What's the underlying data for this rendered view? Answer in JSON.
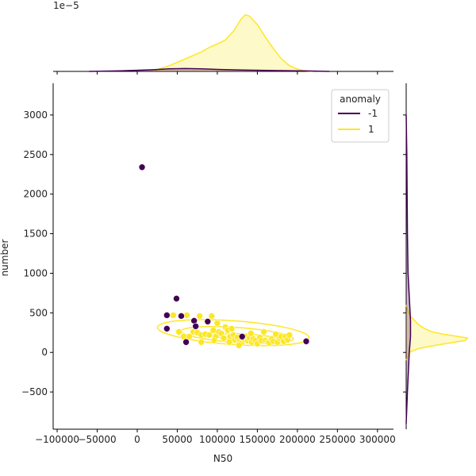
{
  "chart_data": {
    "type": "scatter",
    "xlabel": "N50",
    "ylabel": "number",
    "top_offset_label": "1e−5",
    "xlim": [
      -105000,
      320000
    ],
    "ylim": [
      -970,
      3400
    ],
    "x_ticks": [
      {
        "value": -100000,
        "label": "−100000"
      },
      {
        "value": -50000,
        "label": "−50000"
      },
      {
        "value": 0,
        "label": "0"
      },
      {
        "value": 50000,
        "label": "50000"
      },
      {
        "value": 100000,
        "label": "100000"
      },
      {
        "value": 150000,
        "label": "150000"
      },
      {
        "value": 200000,
        "label": "200000"
      },
      {
        "value": 250000,
        "label": "250000"
      },
      {
        "value": 300000,
        "label": "300000"
      }
    ],
    "y_ticks": [
      {
        "value": 3000,
        "label": "3000"
      },
      {
        "value": 2500,
        "label": "2500"
      },
      {
        "value": 2000,
        "label": "2000"
      },
      {
        "value": 1500,
        "label": "1500"
      },
      {
        "value": 1000,
        "label": "1000"
      },
      {
        "value": 500,
        "label": "500"
      },
      {
        "value": 0,
        "label": "0"
      },
      {
        "value": -500,
        "label": "−500"
      }
    ],
    "legend": {
      "title": "anomaly",
      "placement": "top-right",
      "entries": [
        {
          "label": "-1",
          "color": "#440154"
        },
        {
          "label": "1",
          "color": "#fde725"
        }
      ]
    },
    "series": [
      {
        "name": "-1",
        "color": "#440154",
        "points": [
          [
            6000,
            2340
          ],
          [
            49000,
            680
          ],
          [
            37000,
            470
          ],
          [
            55000,
            460
          ],
          [
            37000,
            300
          ],
          [
            71000,
            400
          ],
          [
            73000,
            330
          ],
          [
            88000,
            390
          ],
          [
            61000,
            130
          ],
          [
            131000,
            200
          ],
          [
            211000,
            140
          ]
        ]
      },
      {
        "name": "1",
        "color": "#fde725",
        "points": [
          [
            45000,
            470
          ],
          [
            62000,
            470
          ],
          [
            78000,
            460
          ],
          [
            93000,
            460
          ],
          [
            100000,
            370
          ],
          [
            52000,
            260
          ],
          [
            58000,
            200
          ],
          [
            65000,
            200
          ],
          [
            70000,
            260
          ],
          [
            75000,
            250
          ],
          [
            80000,
            220
          ],
          [
            85000,
            230
          ],
          [
            90000,
            220
          ],
          [
            95000,
            280
          ],
          [
            98000,
            200
          ],
          [
            102000,
            260
          ],
          [
            105000,
            240
          ],
          [
            108000,
            180
          ],
          [
            110000,
            320
          ],
          [
            113000,
            280
          ],
          [
            116000,
            200
          ],
          [
            118000,
            300
          ],
          [
            120000,
            220
          ],
          [
            122000,
            160
          ],
          [
            125000,
            190
          ],
          [
            128000,
            140
          ],
          [
            130000,
            120
          ],
          [
            133000,
            170
          ],
          [
            135000,
            200
          ],
          [
            138000,
            150
          ],
          [
            140000,
            180
          ],
          [
            143000,
            130
          ],
          [
            145000,
            170
          ],
          [
            148000,
            150
          ],
          [
            150000,
            110
          ],
          [
            153000,
            190
          ],
          [
            155000,
            150
          ],
          [
            158000,
            260
          ],
          [
            160000,
            150
          ],
          [
            163000,
            130
          ],
          [
            165000,
            120
          ],
          [
            168000,
            170
          ],
          [
            170000,
            140
          ],
          [
            173000,
            230
          ],
          [
            175000,
            130
          ],
          [
            178000,
            180
          ],
          [
            180000,
            200
          ],
          [
            183000,
            140
          ],
          [
            185000,
            200
          ],
          [
            188000,
            160
          ],
          [
            190000,
            220
          ],
          [
            80000,
            130
          ],
          [
            115000,
            130
          ],
          [
            127000,
            90
          ],
          [
            142000,
            240
          ],
          [
            96000,
            150
          ]
        ]
      }
    ],
    "marginal_x": {
      "series": [
        {
          "name": "1",
          "x": [
            20000,
            40000,
            60000,
            80000,
            90000,
            100000,
            110000,
            120000,
            130000,
            135000,
            140000,
            150000,
            160000,
            170000,
            180000,
            190000,
            200000,
            210000,
            220000
          ],
          "density": [
            0.01,
            0.1,
            0.22,
            0.34,
            0.42,
            0.48,
            0.55,
            0.7,
            0.92,
            0.99,
            0.97,
            0.82,
            0.6,
            0.4,
            0.22,
            0.1,
            0.04,
            0.01,
            0.0
          ]
        },
        {
          "name": "-1",
          "x": [
            -60000,
            -20000,
            20000,
            40000,
            60000,
            80000,
            100000,
            130000,
            170000,
            210000,
            240000
          ],
          "density": [
            0.0,
            0.01,
            0.03,
            0.045,
            0.05,
            0.045,
            0.035,
            0.025,
            0.015,
            0.008,
            0.0
          ]
        }
      ]
    },
    "marginal_y": {
      "series": [
        {
          "name": "1",
          "y": [
            -100,
            0,
            50,
            100,
            150,
            180,
            200,
            230,
            260,
            300,
            350,
            400,
            450,
            500,
            600
          ],
          "density": [
            0.0,
            0.05,
            0.2,
            0.55,
            0.95,
            0.99,
            0.85,
            0.6,
            0.42,
            0.3,
            0.2,
            0.14,
            0.08,
            0.04,
            0.0
          ]
        },
        {
          "name": "-1",
          "y": [
            -900,
            -500,
            0,
            200,
            400,
            700,
            1000,
            1500,
            2000,
            2500,
            3000
          ],
          "density": [
            0.0,
            0.02,
            0.05,
            0.07,
            0.07,
            0.05,
            0.03,
            0.02,
            0.015,
            0.01,
            0.0
          ]
        }
      ]
    },
    "contours": [
      {
        "cx": 120000,
        "cy": 250,
        "rx": 95000,
        "ry": 150,
        "rotate": 4
      },
      {
        "cx": 125000,
        "cy": 220,
        "rx": 70000,
        "ry": 95,
        "rotate": 4
      },
      {
        "cx": 140000,
        "cy": 180,
        "rx": 40000,
        "ry": 50,
        "rotate": 4
      }
    ]
  }
}
